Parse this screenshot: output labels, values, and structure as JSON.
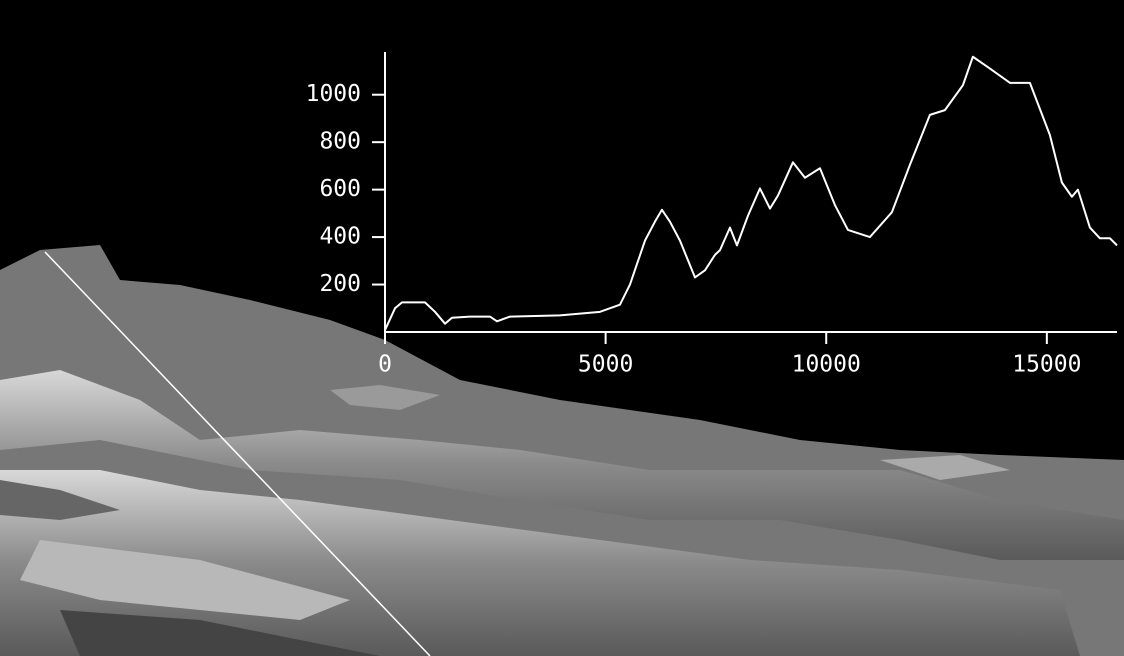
{
  "chart_data": {
    "type": "line",
    "x": [
      0,
      227,
      385,
      906,
      1133,
      1360,
      1518,
      1926,
      2379,
      2538,
      2833,
      3966,
      4872,
      5325,
      5552,
      5892,
      6118,
      6277,
      6458,
      6685,
      7025,
      7252,
      7478,
      7592,
      7818,
      7977,
      8226,
      8498,
      8725,
      8906,
      9246,
      9518,
      9858,
      10197,
      10492,
      10990,
      11489,
      11897,
      12350,
      12690,
      13098,
      13324,
      13710,
      14163,
      14616,
      15069,
      15341,
      15568,
      15704,
      15976,
      16203,
      16430,
      16590
    ],
    "values": [
      8,
      100,
      125,
      125,
      85,
      35,
      60,
      65,
      65,
      45,
      65,
      70,
      85,
      115,
      200,
      385,
      465,
      515,
      465,
      385,
      230,
      260,
      325,
      345,
      440,
      365,
      490,
      605,
      520,
      575,
      715,
      650,
      690,
      535,
      430,
      400,
      505,
      705,
      915,
      935,
      1040,
      1160,
      1110,
      1050,
      1050,
      830,
      630,
      570,
      600,
      440,
      395,
      395,
      365
    ],
    "color": "#ffffff",
    "xlim": [
      0,
      16590
    ],
    "ylim": [
      0,
      1180
    ],
    "xticks": [
      0,
      5000,
      10000,
      15000
    ],
    "yticks": [
      200,
      400,
      600,
      800,
      1000
    ]
  }
}
